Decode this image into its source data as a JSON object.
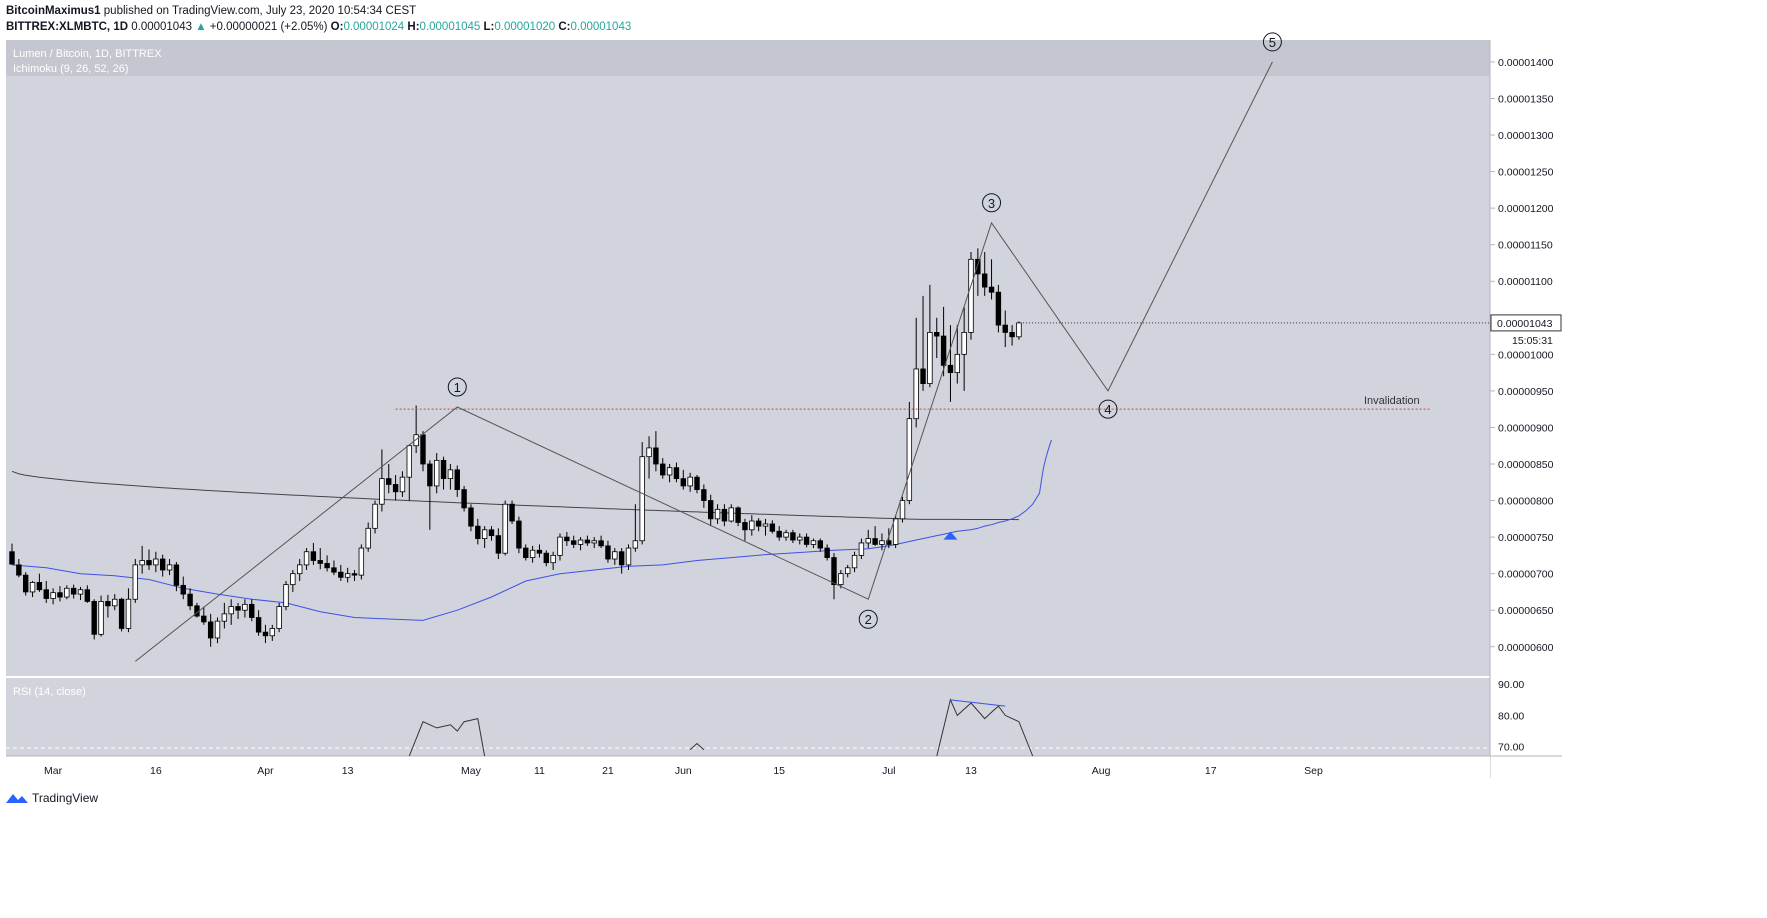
{
  "header": {
    "author": "BitcoinMaximus1",
    "published_text": "published on TradingView.com, July 23, 2020 10:54:34 CEST",
    "symbol": "BITTREX:XLMBTC, 1D",
    "last_price": "0.00001043",
    "change_arrow": "▲",
    "change": "+0.00000021 (+2.05%)",
    "o_label": "O:",
    "o_value": "0.00001024",
    "h_label": "H:",
    "h_value": "0.00001045",
    "l_label": "L:",
    "l_value": "0.00001020",
    "c_label": "C:",
    "c_value": "0.00001043"
  },
  "legend": {
    "pair": "Lumen / Bitcoin, 1D, BITTREX",
    "indicator": "Ichimoku (9, 26, 52, 26)",
    "rsi": "RSI (14, close)"
  },
  "price_badge": {
    "value": "0.00001043",
    "countdown": "15:05:31"
  },
  "footer": {
    "brand": "TradingView"
  },
  "colors": {
    "pane_bg": "#d1d4dc",
    "legend_band": "#c4c7cf",
    "ichimoku_base": "#3f51e5",
    "ma_dark": "#444444",
    "invalidation": "#e53935",
    "candle_up": "#ffffff",
    "candle_down": "#000000",
    "wave_line": "#555555",
    "signal": "#2962ff"
  },
  "chart_data": {
    "type": "candlestick",
    "title": "Lumen / Bitcoin, 1D, BITTREX",
    "x_axis": {
      "ticks": [
        "Mar",
        "16",
        "Apr",
        "13",
        "May",
        "11",
        "21",
        "Jun",
        "15",
        "Jul",
        "13",
        "Aug",
        "17",
        "Sep"
      ]
    },
    "y_axis": {
      "range": [
        5.6e-06,
        1.43e-05
      ],
      "ticks": [
        "0.00001400",
        "0.00001350",
        "0.00001300",
        "0.00001250",
        "0.00001200",
        "0.00001150",
        "0.00001100",
        "0.00001050",
        "0.00001000",
        "0.00000950",
        "0.00000900",
        "0.00000850",
        "0.00000800",
        "0.00000750",
        "0.00000700",
        "0.00000650",
        "0.00000600"
      ]
    },
    "start_date": "2020-02-24",
    "candles": [
      [
        7.3e-06,
        7.41e-06,
        7.15e-06,
        7.13e-06
      ],
      [
        7.12e-06,
        7.2e-06,
        6.95e-06,
        6.98e-06
      ],
      [
        6.98e-06,
        7.02e-06,
        6.7e-06,
        6.75e-06
      ],
      [
        6.75e-06,
        6.9e-06,
        6.68e-06,
        6.88e-06
      ],
      [
        6.88e-06,
        7e-06,
        6.75e-06,
        6.78e-06
      ],
      [
        6.78e-06,
        6.9e-06,
        6.6e-06,
        6.66e-06
      ],
      [
        6.66e-06,
        6.8e-06,
        6.58e-06,
        6.74e-06
      ],
      [
        6.74e-06,
        6.83e-06,
        6.62e-06,
        6.68e-06
      ],
      [
        6.68e-06,
        6.84e-06,
        6.65e-06,
        6.8e-06
      ],
      [
        6.8e-06,
        6.85e-06,
        6.66e-06,
        6.72e-06
      ],
      [
        6.72e-06,
        6.82e-06,
        6.64e-06,
        6.78e-06
      ],
      [
        6.78e-06,
        6.84e-06,
        6.6e-06,
        6.62e-06
      ],
      [
        6.62e-06,
        6.65e-06,
        6.1e-06,
        6.17e-06
      ],
      [
        6.17e-06,
        6.7e-06,
        6.14e-06,
        6.62e-06
      ],
      [
        6.62e-06,
        6.71e-06,
        6.4e-06,
        6.56e-06
      ],
      [
        6.56e-06,
        6.72e-06,
        6.5e-06,
        6.65e-06
      ],
      [
        6.65e-06,
        6.67e-06,
        6.21e-06,
        6.25e-06
      ],
      [
        6.25e-06,
        6.8e-06,
        6.2e-06,
        6.65e-06
      ],
      [
        6.65e-06,
        7.2e-06,
        6.6e-06,
        7.12e-06
      ],
      [
        7.12e-06,
        7.38e-06,
        7e-06,
        7.18e-06
      ],
      [
        7.18e-06,
        7.33e-06,
        7.05e-06,
        7.12e-06
      ],
      [
        7.12e-06,
        7.3e-06,
        7.02e-06,
        7.2e-06
      ],
      [
        7.2e-06,
        7.26e-06,
        6.96e-06,
        7.05e-06
      ],
      [
        7.05e-06,
        7.2e-06,
        6.98e-06,
        7.12e-06
      ],
      [
        7.12e-06,
        7.16e-06,
        6.76e-06,
        6.84e-06
      ],
      [
        6.84e-06,
        6.96e-06,
        6.65e-06,
        6.72e-06
      ],
      [
        6.72e-06,
        6.8e-06,
        6.5e-06,
        6.56e-06
      ],
      [
        6.56e-06,
        6.6e-06,
        6.4e-06,
        6.42e-06
      ],
      [
        6.42e-06,
        6.55e-06,
        6.3e-06,
        6.34e-06
      ],
      [
        6.34e-06,
        6.45e-06,
        6e-06,
        6.12e-06
      ],
      [
        6.12e-06,
        6.4e-06,
        6.05e-06,
        6.35e-06
      ],
      [
        6.35e-06,
        6.6e-06,
        6.25e-06,
        6.45e-06
      ],
      [
        6.45e-06,
        6.65e-06,
        6.3e-06,
        6.55e-06
      ],
      [
        6.55e-06,
        6.6e-06,
        6.38e-06,
        6.5e-06
      ],
      [
        6.5e-06,
        6.65e-06,
        6.4e-06,
        6.58e-06
      ],
      [
        6.58e-06,
        6.65e-06,
        6.35e-06,
        6.4e-06
      ],
      [
        6.4e-06,
        6.5e-06,
        6.15e-06,
        6.2e-06
      ],
      [
        6.2e-06,
        6.3e-06,
        6.05e-06,
        6.15e-06
      ],
      [
        6.15e-06,
        6.3e-06,
        6.08e-06,
        6.25e-06
      ],
      [
        6.25e-06,
        6.6e-06,
        6.2e-06,
        6.55e-06
      ],
      [
        6.55e-06,
        6.9e-06,
        6.5e-06,
        6.85e-06
      ],
      [
        6.85e-06,
        7.05e-06,
        6.75e-06,
        7e-06
      ],
      [
        7e-06,
        7.2e-06,
        6.9e-06,
        7.12e-06
      ],
      [
        7.12e-06,
        7.35e-06,
        7.05e-06,
        7.3e-06
      ],
      [
        7.3e-06,
        7.42e-06,
        7.12e-06,
        7.18e-06
      ],
      [
        7.18e-06,
        7.35e-06,
        7.06e-06,
        7.14e-06
      ],
      [
        7.14e-06,
        7.25e-06,
        7.03e-06,
        7.08e-06
      ],
      [
        7.08e-06,
        7.18e-06,
        6.98e-06,
        7.02e-06
      ],
      [
        7.02e-06,
        7.12e-06,
        6.9e-06,
        6.95e-06
      ],
      [
        6.95e-06,
        7.08e-06,
        6.88e-06,
        7e-06
      ],
      [
        7e-06,
        7.05e-06,
        6.9e-06,
        6.98e-06
      ],
      [
        6.98e-06,
        7.4e-06,
        6.92e-06,
        7.35e-06
      ],
      [
        7.35e-06,
        7.7e-06,
        7.3e-06,
        7.62e-06
      ],
      [
        7.62e-06,
        8e-06,
        7.55e-06,
        7.95e-06
      ],
      [
        7.95e-06,
        8.7e-06,
        7.85e-06,
        8.3e-06
      ],
      [
        8.3e-06,
        8.5e-06,
        8.1e-06,
        8.22e-06
      ],
      [
        8.22e-06,
        8.35e-06,
        8e-06,
        8.12e-06
      ],
      [
        8.12e-06,
        8.4e-06,
        8.05e-06,
        8.32e-06
      ],
      [
        8.32e-06,
        8.75e-06,
        8e-06,
        8.75e-06
      ],
      [
        8.75e-06,
        9.3e-06,
        8.65e-06,
        8.9e-06
      ],
      [
        8.9e-06,
        8.95e-06,
        8.4e-06,
        8.5e-06
      ],
      [
        8.5e-06,
        8.55e-06,
        7.6e-06,
        8.2e-06
      ],
      [
        8.2e-06,
        8.65e-06,
        8.1e-06,
        8.55e-06
      ],
      [
        8.55e-06,
        8.6e-06,
        8.15e-06,
        8.3e-06
      ],
      [
        8.3e-06,
        8.5e-06,
        8.15e-06,
        8.42e-06
      ],
      [
        8.42e-06,
        8.48e-06,
        8.05e-06,
        8.15e-06
      ],
      [
        8.15e-06,
        8.2e-06,
        7.85e-06,
        7.9e-06
      ],
      [
        7.9e-06,
        7.95e-06,
        7.58e-06,
        7.65e-06
      ],
      [
        7.65e-06,
        7.75e-06,
        7.4e-06,
        7.48e-06
      ],
      [
        7.48e-06,
        7.65e-06,
        7.35e-06,
        7.6e-06
      ],
      [
        7.6e-06,
        7.65e-06,
        7.45e-06,
        7.52e-06
      ],
      [
        7.52e-06,
        7.62e-06,
        7.2e-06,
        7.28e-06
      ],
      [
        7.28e-06,
        8e-06,
        7.25e-06,
        7.95e-06
      ],
      [
        7.95e-06,
        8e-06,
        7.68e-06,
        7.72e-06
      ],
      [
        7.72e-06,
        7.78e-06,
        7.28e-06,
        7.35e-06
      ],
      [
        7.35e-06,
        7.4e-06,
        7.18e-06,
        7.22e-06
      ],
      [
        7.22e-06,
        7.38e-06,
        7.15e-06,
        7.32e-06
      ],
      [
        7.32e-06,
        7.4e-06,
        7.22e-06,
        7.28e-06
      ],
      [
        7.28e-06,
        7.32e-06,
        7.1e-06,
        7.15e-06
      ],
      [
        7.15e-06,
        7.3e-06,
        7.05e-06,
        7.25e-06
      ],
      [
        7.25e-06,
        7.55e-06,
        7.18e-06,
        7.5e-06
      ],
      [
        7.5e-06,
        7.57e-06,
        7.38e-06,
        7.45e-06
      ],
      [
        7.45e-06,
        7.52e-06,
        7.35e-06,
        7.4e-06
      ],
      [
        7.4e-06,
        7.5e-06,
        7.32e-06,
        7.46e-06
      ],
      [
        7.46e-06,
        7.52e-06,
        7.38e-06,
        7.42e-06
      ],
      [
        7.42e-06,
        7.5e-06,
        7.35e-06,
        7.45e-06
      ],
      [
        7.45e-06,
        7.52e-06,
        7.35e-06,
        7.38e-06
      ],
      [
        7.38e-06,
        7.45e-06,
        7.15e-06,
        7.2e-06
      ],
      [
        7.2e-06,
        7.35e-06,
        7.12e-06,
        7.3e-06
      ],
      [
        7.3e-06,
        7.35e-06,
        7e-06,
        7.12e-06
      ],
      [
        7.12e-06,
        7.4e-06,
        7.05e-06,
        7.35e-06
      ],
      [
        7.35e-06,
        7.95e-06,
        7.3e-06,
        7.45e-06
      ],
      [
        7.45e-06,
        8.8e-06,
        7.4e-06,
        8.6e-06
      ],
      [
        8.6e-06,
        8.88e-06,
        8.3e-06,
        8.72e-06
      ],
      [
        8.72e-06,
        8.95e-06,
        8.4e-06,
        8.5e-06
      ],
      [
        8.5e-06,
        8.58e-06,
        8.3e-06,
        8.35e-06
      ],
      [
        8.35e-06,
        8.5e-06,
        8.25e-06,
        8.45e-06
      ],
      [
        8.45e-06,
        8.52e-06,
        8.25e-06,
        8.3e-06
      ],
      [
        8.3e-06,
        8.42e-06,
        8.15e-06,
        8.2e-06
      ],
      [
        8.2e-06,
        8.38e-06,
        8.12e-06,
        8.32e-06
      ],
      [
        8.32e-06,
        8.35e-06,
        8.1e-06,
        8.15e-06
      ],
      [
        8.15e-06,
        8.22e-06,
        7.9e-06,
        8e-06
      ],
      [
        8e-06,
        8.08e-06,
        7.65e-06,
        7.75e-06
      ],
      [
        7.75e-06,
        7.95e-06,
        7.68e-06,
        7.88e-06
      ],
      [
        7.88e-06,
        7.95e-06,
        7.65e-06,
        7.72e-06
      ],
      [
        7.72e-06,
        7.95e-06,
        7.7e-06,
        7.9e-06
      ],
      [
        7.9e-06,
        7.92e-06,
        7.65e-06,
        7.7e-06
      ],
      [
        7.7e-06,
        7.75e-06,
        7.45e-06,
        7.6e-06
      ],
      [
        7.6e-06,
        7.8e-06,
        7.52e-06,
        7.72e-06
      ],
      [
        7.72e-06,
        7.76e-06,
        7.58e-06,
        7.65e-06
      ],
      [
        7.65e-06,
        7.75e-06,
        7.52e-06,
        7.68e-06
      ],
      [
        7.68e-06,
        7.73e-06,
        7.55e-06,
        7.58e-06
      ],
      [
        7.58e-06,
        7.65e-06,
        7.45e-06,
        7.5e-06
      ],
      [
        7.5e-06,
        7.6e-06,
        7.45e-06,
        7.56e-06
      ],
      [
        7.56e-06,
        7.6e-06,
        7.42e-06,
        7.46e-06
      ],
      [
        7.46e-06,
        7.55e-06,
        7.4e-06,
        7.5e-06
      ],
      [
        7.5e-06,
        7.55e-06,
        7.36e-06,
        7.4e-06
      ],
      [
        7.4e-06,
        7.48e-06,
        7.35e-06,
        7.45e-06
      ],
      [
        7.45e-06,
        7.48e-06,
        7.3e-06,
        7.35e-06
      ],
      [
        7.35e-06,
        7.4e-06,
        7.18e-06,
        7.22e-06
      ],
      [
        7.22e-06,
        7.28e-06,
        6.65e-06,
        6.85e-06
      ],
      [
        6.85e-06,
        7.05e-06,
        6.8e-06,
        7e-06
      ],
      [
        7e-06,
        7.12e-06,
        6.95e-06,
        7.08e-06
      ],
      [
        7.08e-06,
        7.3e-06,
        7.02e-06,
        7.25e-06
      ],
      [
        7.25e-06,
        7.48e-06,
        7.2e-06,
        7.42e-06
      ],
      [
        7.42e-06,
        7.6e-06,
        7.35e-06,
        7.48e-06
      ],
      [
        7.48e-06,
        7.65e-06,
        7.38e-06,
        7.4e-06
      ],
      [
        7.4e-06,
        7.55e-06,
        7.32e-06,
        7.45e-06
      ],
      [
        7.45e-06,
        7.62e-06,
        7.35e-06,
        7.4e-06
      ],
      [
        7.4e-06,
        7.8e-06,
        7.35e-06,
        7.75e-06
      ],
      [
        7.75e-06,
        8.05e-06,
        7.7e-06,
        8e-06
      ],
      [
        8e-06,
        9.35e-06,
        7.95e-06,
        9.12e-06
      ],
      [
        9.12e-06,
        1.05e-05,
        9e-06,
        9.8e-06
      ],
      [
        9.8e-06,
        1.08e-05,
        9.5e-06,
        9.6e-06
      ],
      [
        9.6e-06,
        1.095e-05,
        9.55e-06,
        1.03e-05
      ],
      [
        1.03e-05,
        1.05e-05,
        9.95e-06,
        1.025e-05
      ],
      [
        1.025e-05,
        1.065e-05,
        9.7e-06,
        9.85e-06
      ],
      [
        9.85e-06,
        1.04e-05,
        9.35e-06,
        9.75e-06
      ],
      [
        9.75e-06,
        1.04e-05,
        9.6e-06,
        1e-05
      ],
      [
        1e-05,
        1.065e-05,
        9.5e-06,
        1.03e-05
      ],
      [
        1.03e-05,
        1.14e-05,
        1.02e-05,
        1.13e-05
      ],
      [
        1.13e-05,
        1.145e-05,
        1.08e-05,
        1.11e-05
      ],
      [
        1.11e-05,
        1.14e-05,
        1.08e-05,
        1.092e-05
      ],
      [
        1.092e-05,
        1.13e-05,
        1.075e-05,
        1.085e-05
      ],
      [
        1.085e-05,
        1.095e-05,
        1.03e-05,
        1.04e-05
      ],
      [
        1.04e-05,
        1.06e-05,
        1.01e-05,
        1.03e-05
      ],
      [
        1.03e-05,
        1.04e-05,
        1.012e-05,
        1.024e-05
      ],
      [
        1.024e-05,
        1.045e-05,
        1.02e-05,
        1.043e-05
      ]
    ],
    "ichimoku_base_line": [
      7.12e-06,
      7.08e-06,
      7e-06,
      6.97e-06,
      6.92e-06,
      6.8e-06,
      6.72e-06,
      6.65e-06,
      6.6e-06,
      6.48e-06,
      6.4e-06,
      6.38e-06,
      6.36e-06,
      6.5e-06,
      6.68e-06,
      6.9e-06,
      7e-06,
      7.05e-06,
      7.1e-06,
      7.12e-06,
      7.18e-06,
      7.22e-06,
      7.26e-06,
      7.29e-06,
      7.32e-06,
      7.34e-06,
      7.38e-06,
      7.42e-06,
      7.46e-06,
      7.5e-06,
      7.52e-06,
      7.54e-06,
      7.56e-06,
      7.58e-06,
      7.59e-06,
      7.6e-06,
      7.62e-06,
      7.65e-06,
      7.67e-06,
      7.7e-06,
      7.72e-06,
      7.75e-06,
      7.79e-06,
      7.86e-06,
      7.95e-06,
      8.1e-06,
      8.28e-06,
      8.45e-06,
      8.56e-06,
      8.66e-06,
      8.75e-06,
      8.83e-06
    ],
    "ichimoku_base_line_dates": [
      "2020-02-24",
      "2020-02-29",
      "2020-03-05",
      "2020-03-10",
      "2020-03-15",
      "2020-03-20",
      "2020-03-25",
      "2020-03-30",
      "2020-04-04",
      "2020-04-09",
      "2020-04-14",
      "2020-04-19",
      "2020-04-24",
      "2020-04-29",
      "2020-05-04",
      "2020-05-09",
      "2020-05-14",
      "2020-05-19",
      "2020-05-24",
      "2020-05-29",
      "2020-06-03",
      "2020-06-08",
      "2020-06-13",
      "2020-06-18",
      "2020-06-23",
      "2020-06-28",
      "2020-07-01",
      "2020-07-03",
      "2020-07-05",
      "2020-07-07",
      "2020-07-08",
      "2020-07-09",
      "2020-07-10",
      "2020-07-11",
      "2020-07-12",
      "2020-07-13",
      "2020-07-14",
      "2020-07-15",
      "2020-07-16",
      "2020-07-17",
      "2020-07-18",
      "2020-07-19",
      "2020-07-20",
      "2020-07-21",
      "2020-07-22",
      "2020-07-23",
      "2020-07-23",
      "2020-07-23",
      "2020-07-23",
      "2020-07-23",
      "2020-07-23",
      "2020-07-23"
    ],
    "waves": [
      {
        "label": "1",
        "date": "2020-04-29",
        "price": 9.28e-06
      },
      {
        "label": "2",
        "date": "2020-06-28",
        "price": 6.65e-06
      },
      {
        "label": "3",
        "date": "2020-07-16",
        "price": 1.18e-05
      },
      {
        "label": "4",
        "date": "2020-08-02",
        "price": 9.5e-06
      },
      {
        "label": "5",
        "date": "2020-08-26",
        "price": 1.4e-05
      }
    ],
    "wave_start": {
      "date": "2020-03-13",
      "price": 5.8e-06
    },
    "invalidation": {
      "label": "Invalidation",
      "price": 9.25e-06
    },
    "rsi": {
      "title": "RSI (14, close)",
      "ticks": [
        "90.00",
        "80.00",
        "70.00"
      ],
      "range": [
        67,
        92
      ]
    }
  }
}
